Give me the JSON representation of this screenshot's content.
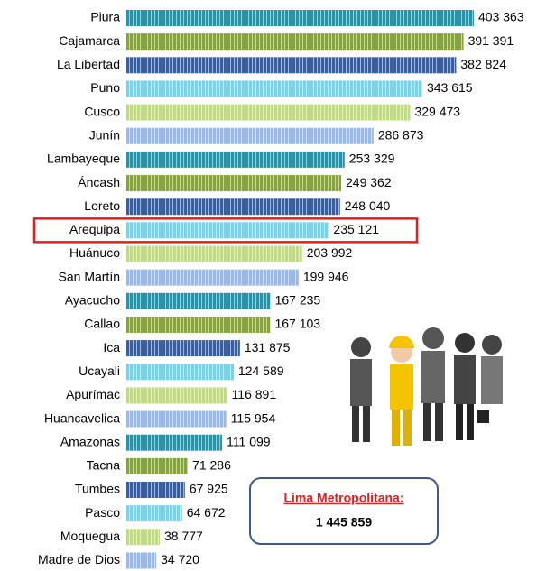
{
  "chart_data": {
    "type": "bar",
    "orientation": "horizontal",
    "categories": [
      "Piura",
      "Cajamarca",
      "La Libertad",
      "Puno",
      "Cusco",
      "Junín",
      "Lambayeque",
      "Áncash",
      "Loreto",
      "Arequipa",
      "Huánuco",
      "San Martín",
      "Ayacucho",
      "Callao",
      "Ica",
      "Ucayali",
      "Apurímac",
      "Huancavelica",
      "Amazonas",
      "Tacna",
      "Tumbes",
      "Pasco",
      "Moquegua",
      "Madre de Dios"
    ],
    "values": [
      403363,
      391391,
      382824,
      343615,
      329473,
      286873,
      253329,
      249362,
      248040,
      235121,
      203992,
      199946,
      167235,
      167103,
      131875,
      124589,
      116891,
      115954,
      111099,
      71286,
      67925,
      64672,
      38777,
      34720
    ],
    "value_labels": [
      "403 363",
      "391 391",
      "382 824",
      "343 615",
      "329 473",
      "286 873",
      "253 329",
      "249 362",
      "248 040",
      "235 121",
      "203 992",
      "199 946",
      "167 235",
      "167 103",
      "131 875",
      "124 589",
      "116 891",
      "115 954",
      "111 099",
      "71 286",
      "67 925",
      "64 672",
      "38 777",
      "34 720"
    ],
    "colors": [
      "#2f8fa3",
      "#86a043",
      "#3b5e99",
      "#7fd0e3",
      "#c2d98c",
      "#9cb8e3"
    ],
    "highlight": "Arequipa",
    "highlight_color": "#e02020",
    "annotation": {
      "label": "Lima Metropolitana:",
      "value": "1 445 859"
    }
  }
}
